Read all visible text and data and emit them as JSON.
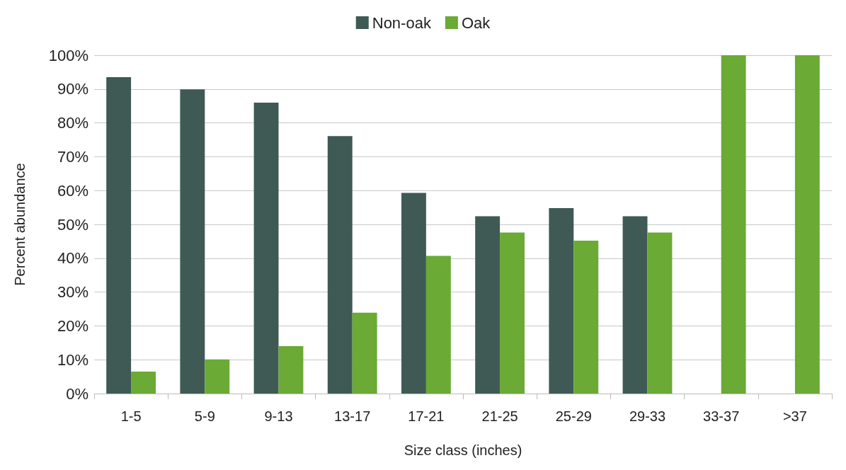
{
  "chart_data": {
    "type": "bar",
    "xlabel": "Size class (inches)",
    "ylabel": "Percent abundance",
    "categories": [
      "1-5",
      "5-9",
      "9-13",
      "13-17",
      "17-21",
      "21-25",
      "25-29",
      "29-33",
      "33-37",
      ">37"
    ],
    "series": [
      {
        "name": "Non-oak",
        "color": "#3f5a55",
        "values": [
          93.5,
          89.9,
          86.0,
          76.1,
          59.3,
          52.4,
          54.8,
          52.4,
          0,
          0
        ]
      },
      {
        "name": "Oak",
        "color": "#6aaa35",
        "values": [
          6.5,
          10.1,
          14.0,
          23.9,
          40.7,
          47.6,
          45.2,
          47.6,
          100,
          100
        ]
      }
    ],
    "ylim": [
      0,
      100
    ],
    "yticks": [
      {
        "value": 0,
        "label": "0%"
      },
      {
        "value": 10,
        "label": "10%"
      },
      {
        "value": 20,
        "label": "20%"
      },
      {
        "value": 30,
        "label": "30%"
      },
      {
        "value": 40,
        "label": "40%"
      },
      {
        "value": 50,
        "label": "50%"
      },
      {
        "value": 60,
        "label": "60%"
      },
      {
        "value": 70,
        "label": "70%"
      },
      {
        "value": 80,
        "label": "80%"
      },
      {
        "value": 90,
        "label": "90%"
      },
      {
        "value": 100,
        "label": "100%"
      }
    ],
    "grid": "y",
    "legend": "top"
  }
}
